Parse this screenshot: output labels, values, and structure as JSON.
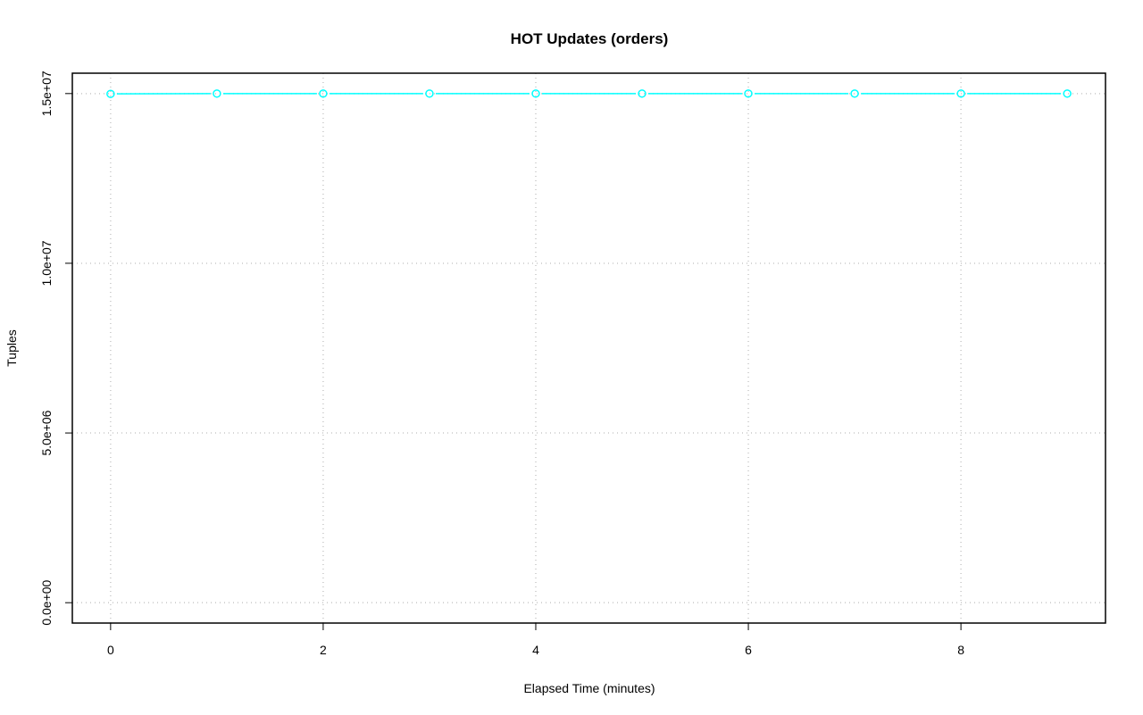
{
  "chart_data": {
    "type": "line",
    "title": "HOT Updates (orders)",
    "xlabel": "Elapsed Time (minutes)",
    "ylabel": "Tuples",
    "xlim": [
      -0.36,
      9.36
    ],
    "ylim": [
      -600000,
      15600000
    ],
    "x_ticks": [
      0,
      2,
      4,
      6,
      8
    ],
    "x_tick_labels": [
      "0",
      "2",
      "4",
      "6",
      "8"
    ],
    "y_ticks": [
      0,
      5000000,
      10000000,
      15000000
    ],
    "y_tick_labels": [
      "0.0e+00",
      "5.0e+06",
      "1.0e+07",
      "1.5e+07"
    ],
    "grid": true,
    "series_color": "#00ffff",
    "x": [
      0,
      1,
      2,
      3,
      4,
      5,
      6,
      7,
      8,
      9
    ],
    "series": [
      {
        "values": [
          14990000,
          15000000,
          15000000,
          15000000,
          15000000,
          15000000,
          15000000,
          15000000,
          15000000,
          15000000
        ]
      }
    ]
  }
}
